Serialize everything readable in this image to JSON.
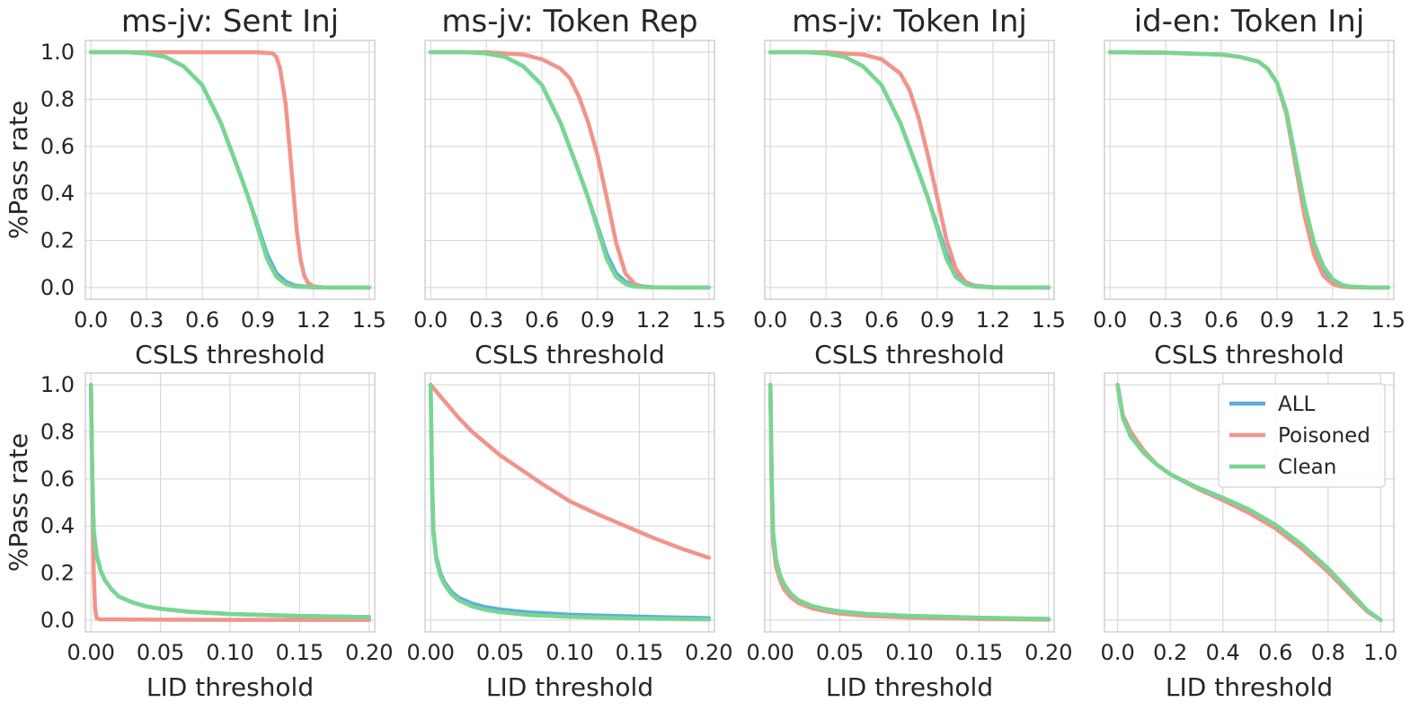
{
  "colors": {
    "ALL": "#5dade2",
    "Poisoned": "#f1948a",
    "Clean": "#78d690"
  },
  "chart_data": [
    {
      "type": "line",
      "title": "ms-jv: Sent Inj",
      "xlabel": "CSLS threshold",
      "ylabel": "%Pass rate",
      "xlim": [
        -0.03,
        1.53
      ],
      "ylim": [
        -0.05,
        1.05
      ],
      "xticks": [
        "0.0",
        "0.3",
        "0.6",
        "0.9",
        "1.2",
        "1.5"
      ],
      "yticks": [
        "0.0",
        "0.2",
        "0.4",
        "0.6",
        "0.8",
        "1.0"
      ],
      "grid": true,
      "series": [
        {
          "name": "ALL",
          "x": [
            0,
            0.2,
            0.3,
            0.4,
            0.5,
            0.6,
            0.7,
            0.8,
            0.85,
            0.9,
            0.95,
            1.0,
            1.05,
            1.1,
            1.2,
            1.3,
            1.5
          ],
          "y": [
            1,
            1,
            0.995,
            0.98,
            0.94,
            0.86,
            0.7,
            0.49,
            0.38,
            0.26,
            0.14,
            0.06,
            0.025,
            0.008,
            0.001,
            0,
            0
          ]
        },
        {
          "name": "Poisoned",
          "x": [
            0,
            0.3,
            0.6,
            0.9,
            0.98,
            1.0,
            1.02,
            1.05,
            1.07,
            1.09,
            1.11,
            1.13,
            1.15,
            1.17,
            1.2,
            1.25,
            1.5
          ],
          "y": [
            1,
            1,
            1,
            1,
            0.995,
            0.98,
            0.93,
            0.78,
            0.6,
            0.42,
            0.24,
            0.12,
            0.05,
            0.02,
            0.005,
            0.001,
            0
          ]
        },
        {
          "name": "Clean",
          "x": [
            0,
            0.2,
            0.3,
            0.4,
            0.5,
            0.6,
            0.7,
            0.8,
            0.85,
            0.9,
            0.95,
            1.0,
            1.05,
            1.1,
            1.2,
            1.3,
            1.5
          ],
          "y": [
            1,
            1,
            0.995,
            0.98,
            0.94,
            0.86,
            0.7,
            0.49,
            0.38,
            0.25,
            0.12,
            0.045,
            0.015,
            0.004,
            0.001,
            0,
            0
          ]
        }
      ]
    },
    {
      "type": "line",
      "title": "ms-jv: Token Rep",
      "xlabel": "CSLS threshold",
      "ylabel": "",
      "xlim": [
        -0.03,
        1.53
      ],
      "ylim": [
        -0.05,
        1.05
      ],
      "xticks": [
        "0.0",
        "0.3",
        "0.6",
        "0.9",
        "1.2",
        "1.5"
      ],
      "yticks": [],
      "grid": true,
      "series": [
        {
          "name": "ALL",
          "x": [
            0,
            0.2,
            0.3,
            0.4,
            0.5,
            0.6,
            0.7,
            0.8,
            0.85,
            0.9,
            0.95,
            1.0,
            1.05,
            1.1,
            1.2,
            1.3,
            1.5
          ],
          "y": [
            1,
            1,
            0.995,
            0.98,
            0.94,
            0.86,
            0.7,
            0.49,
            0.38,
            0.26,
            0.14,
            0.06,
            0.025,
            0.008,
            0.001,
            0,
            0
          ]
        },
        {
          "name": "Poisoned",
          "x": [
            0,
            0.3,
            0.5,
            0.6,
            0.7,
            0.75,
            0.8,
            0.85,
            0.9,
            0.95,
            1.0,
            1.05,
            1.1,
            1.15,
            1.2,
            1.5
          ],
          "y": [
            1,
            1,
            0.99,
            0.97,
            0.93,
            0.89,
            0.81,
            0.7,
            0.56,
            0.38,
            0.19,
            0.06,
            0.015,
            0.003,
            0.001,
            0
          ]
        },
        {
          "name": "Clean",
          "x": [
            0,
            0.2,
            0.3,
            0.4,
            0.5,
            0.6,
            0.7,
            0.8,
            0.85,
            0.9,
            0.95,
            1.0,
            1.05,
            1.1,
            1.2,
            1.3,
            1.5
          ],
          "y": [
            1,
            1,
            0.995,
            0.98,
            0.94,
            0.86,
            0.7,
            0.49,
            0.38,
            0.25,
            0.12,
            0.045,
            0.015,
            0.004,
            0.001,
            0,
            0
          ]
        }
      ]
    },
    {
      "type": "line",
      "title": "ms-jv: Token Inj",
      "xlabel": "CSLS threshold",
      "ylabel": "",
      "xlim": [
        -0.03,
        1.53
      ],
      "ylim": [
        -0.05,
        1.05
      ],
      "xticks": [
        "0.0",
        "0.3",
        "0.6",
        "0.9",
        "1.2",
        "1.5"
      ],
      "yticks": [],
      "grid": true,
      "series": [
        {
          "name": "ALL",
          "x": [
            0,
            0.2,
            0.3,
            0.4,
            0.5,
            0.6,
            0.7,
            0.8,
            0.85,
            0.9,
            0.95,
            1.0,
            1.05,
            1.1,
            1.2,
            1.3,
            1.5
          ],
          "y": [
            1,
            1,
            0.995,
            0.98,
            0.94,
            0.86,
            0.7,
            0.49,
            0.38,
            0.26,
            0.14,
            0.06,
            0.025,
            0.008,
            0.001,
            0,
            0
          ]
        },
        {
          "name": "Poisoned",
          "x": [
            0,
            0.3,
            0.5,
            0.6,
            0.7,
            0.75,
            0.8,
            0.85,
            0.9,
            0.95,
            1.0,
            1.05,
            1.1,
            1.2,
            1.5
          ],
          "y": [
            1,
            1,
            0.99,
            0.97,
            0.91,
            0.84,
            0.72,
            0.56,
            0.38,
            0.2,
            0.08,
            0.025,
            0.006,
            0.001,
            0
          ]
        },
        {
          "name": "Clean",
          "x": [
            0,
            0.2,
            0.3,
            0.4,
            0.5,
            0.6,
            0.7,
            0.8,
            0.85,
            0.9,
            0.95,
            1.0,
            1.05,
            1.1,
            1.2,
            1.3,
            1.5
          ],
          "y": [
            1,
            1,
            0.995,
            0.98,
            0.94,
            0.86,
            0.7,
            0.49,
            0.38,
            0.25,
            0.12,
            0.045,
            0.015,
            0.004,
            0.001,
            0,
            0
          ]
        }
      ]
    },
    {
      "type": "line",
      "title": "id-en: Token Inj",
      "xlabel": "CSLS threshold",
      "ylabel": "",
      "xlim": [
        -0.03,
        1.53
      ],
      "ylim": [
        -0.05,
        1.05
      ],
      "xticks": [
        "0.0",
        "0.3",
        "0.6",
        "0.9",
        "1.2",
        "1.5"
      ],
      "yticks": [],
      "grid": true,
      "series": [
        {
          "name": "ALL",
          "x": [
            0,
            0.3,
            0.6,
            0.7,
            0.8,
            0.85,
            0.9,
            0.95,
            1.0,
            1.05,
            1.1,
            1.15,
            1.2,
            1.25,
            1.3,
            1.4,
            1.5
          ],
          "y": [
            1,
            0.998,
            0.99,
            0.98,
            0.96,
            0.93,
            0.87,
            0.75,
            0.55,
            0.34,
            0.18,
            0.08,
            0.03,
            0.01,
            0.003,
            0,
            0
          ]
        },
        {
          "name": "Poisoned",
          "x": [
            0,
            0.3,
            0.6,
            0.7,
            0.8,
            0.85,
            0.9,
            0.95,
            1.0,
            1.05,
            1.1,
            1.15,
            1.2,
            1.25,
            1.3,
            1.5
          ],
          "y": [
            1,
            0.998,
            0.99,
            0.98,
            0.96,
            0.93,
            0.87,
            0.74,
            0.52,
            0.3,
            0.14,
            0.05,
            0.015,
            0.004,
            0.001,
            0
          ]
        },
        {
          "name": "Clean",
          "x": [
            0,
            0.3,
            0.6,
            0.7,
            0.8,
            0.85,
            0.9,
            0.95,
            1.0,
            1.05,
            1.1,
            1.15,
            1.2,
            1.25,
            1.3,
            1.4,
            1.5
          ],
          "y": [
            1,
            0.998,
            0.99,
            0.98,
            0.96,
            0.93,
            0.87,
            0.75,
            0.55,
            0.35,
            0.19,
            0.09,
            0.035,
            0.012,
            0.004,
            0,
            0
          ]
        }
      ]
    },
    {
      "type": "line",
      "title": "",
      "xlabel": "LID threshold",
      "ylabel": "%Pass rate",
      "xlim": [
        -0.004,
        0.204
      ],
      "ylim": [
        -0.05,
        1.05
      ],
      "xticks": [
        "0.00",
        "0.05",
        "0.10",
        "0.15",
        "0.20"
      ],
      "yticks": [
        "0.0",
        "0.2",
        "0.4",
        "0.6",
        "0.8",
        "1.0"
      ],
      "grid": true,
      "series": [
        {
          "name": "ALL",
          "x": [
            0,
            0.001,
            0.002,
            0.004,
            0.007,
            0.01,
            0.015,
            0.02,
            0.03,
            0.04,
            0.05,
            0.07,
            0.1,
            0.15,
            0.2
          ],
          "y": [
            1,
            0.6,
            0.38,
            0.28,
            0.21,
            0.17,
            0.13,
            0.1,
            0.075,
            0.058,
            0.048,
            0.036,
            0.026,
            0.018,
            0.013
          ]
        },
        {
          "name": "Poisoned",
          "x": [
            0,
            0.001,
            0.002,
            0.003,
            0.004,
            0.006,
            0.05,
            0.1,
            0.15,
            0.2
          ],
          "y": [
            1,
            0.6,
            0.2,
            0.05,
            0.01,
            0.003,
            0.002,
            0.001,
            0.001,
            0.001
          ]
        },
        {
          "name": "Clean",
          "x": [
            0,
            0.001,
            0.002,
            0.004,
            0.007,
            0.01,
            0.015,
            0.02,
            0.03,
            0.04,
            0.05,
            0.07,
            0.1,
            0.15,
            0.2
          ],
          "y": [
            1,
            0.6,
            0.38,
            0.28,
            0.21,
            0.17,
            0.13,
            0.1,
            0.075,
            0.058,
            0.048,
            0.036,
            0.026,
            0.018,
            0.013
          ]
        }
      ]
    },
    {
      "type": "line",
      "title": "",
      "xlabel": "LID threshold",
      "ylabel": "",
      "xlim": [
        -0.004,
        0.204
      ],
      "ylim": [
        -0.05,
        1.05
      ],
      "xticks": [
        "0.00",
        "0.05",
        "0.10",
        "0.15",
        "0.20"
      ],
      "yticks": [],
      "grid": true,
      "series": [
        {
          "name": "ALL",
          "x": [
            0,
            0.001,
            0.002,
            0.004,
            0.007,
            0.01,
            0.015,
            0.02,
            0.03,
            0.04,
            0.05,
            0.07,
            0.1,
            0.15,
            0.2
          ],
          "y": [
            1,
            0.6,
            0.38,
            0.27,
            0.2,
            0.16,
            0.12,
            0.095,
            0.07,
            0.055,
            0.045,
            0.033,
            0.023,
            0.015,
            0.008
          ]
        },
        {
          "name": "Poisoned",
          "x": [
            0,
            0.01,
            0.02,
            0.03,
            0.04,
            0.05,
            0.06,
            0.08,
            0.1,
            0.12,
            0.14,
            0.16,
            0.18,
            0.2
          ],
          "y": [
            1,
            0.93,
            0.86,
            0.8,
            0.75,
            0.7,
            0.66,
            0.58,
            0.505,
            0.45,
            0.4,
            0.35,
            0.305,
            0.265
          ]
        },
        {
          "name": "Clean",
          "x": [
            0,
            0.001,
            0.002,
            0.004,
            0.007,
            0.01,
            0.015,
            0.02,
            0.03,
            0.04,
            0.05,
            0.07,
            0.1,
            0.15,
            0.2
          ],
          "y": [
            1,
            0.6,
            0.37,
            0.26,
            0.19,
            0.15,
            0.11,
            0.085,
            0.058,
            0.043,
            0.034,
            0.022,
            0.014,
            0.007,
            0.003
          ]
        }
      ]
    },
    {
      "type": "line",
      "title": "",
      "xlabel": "LID threshold",
      "ylabel": "",
      "xlim": [
        -0.004,
        0.204
      ],
      "ylim": [
        -0.05,
        1.05
      ],
      "xticks": [
        "0.00",
        "0.05",
        "0.10",
        "0.15",
        "0.20"
      ],
      "yticks": [],
      "grid": true,
      "series": [
        {
          "name": "ALL",
          "x": [
            0,
            0.001,
            0.002,
            0.004,
            0.007,
            0.01,
            0.015,
            0.02,
            0.03,
            0.04,
            0.05,
            0.07,
            0.1,
            0.15,
            0.2
          ],
          "y": [
            1,
            0.6,
            0.37,
            0.26,
            0.19,
            0.15,
            0.11,
            0.085,
            0.06,
            0.046,
            0.037,
            0.026,
            0.018,
            0.01,
            0.005
          ]
        },
        {
          "name": "Poisoned",
          "x": [
            0,
            0.001,
            0.002,
            0.004,
            0.007,
            0.01,
            0.015,
            0.02,
            0.03,
            0.04,
            0.05,
            0.07,
            0.1,
            0.15,
            0.2
          ],
          "y": [
            1,
            0.55,
            0.33,
            0.23,
            0.17,
            0.13,
            0.095,
            0.073,
            0.05,
            0.037,
            0.028,
            0.018,
            0.011,
            0.005,
            0.002
          ]
        },
        {
          "name": "Clean",
          "x": [
            0,
            0.001,
            0.002,
            0.004,
            0.007,
            0.01,
            0.015,
            0.02,
            0.03,
            0.04,
            0.05,
            0.07,
            0.1,
            0.15,
            0.2
          ],
          "y": [
            1,
            0.6,
            0.37,
            0.26,
            0.19,
            0.15,
            0.11,
            0.085,
            0.06,
            0.046,
            0.037,
            0.026,
            0.018,
            0.01,
            0.005
          ]
        }
      ]
    },
    {
      "type": "line",
      "title": "",
      "xlabel": "LID threshold",
      "ylabel": "",
      "xlim": [
        -0.05,
        1.05
      ],
      "ylim": [
        -0.05,
        1.05
      ],
      "xticks": [
        "0.0",
        "0.2",
        "0.4",
        "0.6",
        "0.8",
        "1.0"
      ],
      "yticks": [],
      "grid": true,
      "legend": {
        "position": "upper-right",
        "entries": [
          "ALL",
          "Poisoned",
          "Clean"
        ]
      },
      "series": [
        {
          "name": "ALL",
          "x": [
            0,
            0.02,
            0.05,
            0.1,
            0.15,
            0.2,
            0.3,
            0.4,
            0.5,
            0.6,
            0.7,
            0.8,
            0.9,
            0.95,
            1.0
          ],
          "y": [
            1,
            0.86,
            0.78,
            0.71,
            0.66,
            0.62,
            0.565,
            0.52,
            0.47,
            0.405,
            0.32,
            0.22,
            0.1,
            0.04,
            0
          ]
        },
        {
          "name": "Poisoned",
          "x": [
            0,
            0.02,
            0.05,
            0.1,
            0.15,
            0.2,
            0.3,
            0.4,
            0.5,
            0.6,
            0.7,
            0.8,
            0.9,
            0.95,
            1.0
          ],
          "y": [
            1,
            0.87,
            0.8,
            0.72,
            0.66,
            0.62,
            0.56,
            0.51,
            0.455,
            0.39,
            0.305,
            0.205,
            0.09,
            0.035,
            0
          ]
        },
        {
          "name": "Clean",
          "x": [
            0,
            0.02,
            0.05,
            0.1,
            0.15,
            0.2,
            0.3,
            0.4,
            0.5,
            0.6,
            0.7,
            0.8,
            0.9,
            0.95,
            1.0
          ],
          "y": [
            1,
            0.86,
            0.78,
            0.71,
            0.66,
            0.62,
            0.565,
            0.52,
            0.47,
            0.405,
            0.32,
            0.22,
            0.1,
            0.04,
            0
          ]
        }
      ]
    }
  ]
}
